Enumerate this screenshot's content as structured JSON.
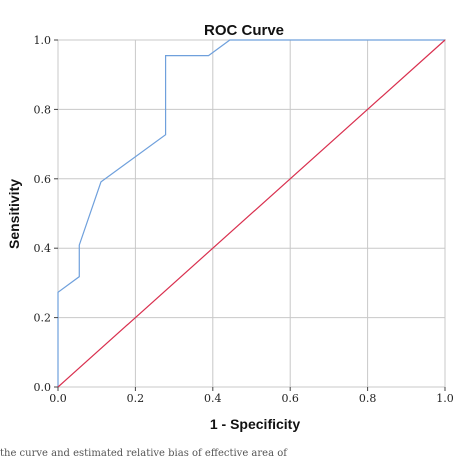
{
  "chart_data": {
    "type": "line",
    "title": "ROC Curve",
    "xlabel": "1 - Specificity",
    "ylabel": "Sensitivity",
    "xlim": [
      0,
      1
    ],
    "ylim": [
      0,
      1
    ],
    "x_ticks": [
      "0.0",
      "0.2",
      "0.4",
      "0.6",
      "0.8",
      "1.0"
    ],
    "y_ticks": [
      "0.0",
      "0.2",
      "0.4",
      "0.6",
      "0.8",
      "1.0"
    ],
    "grid": true,
    "legend": "none",
    "series": [
      {
        "color": "#6fa0dc",
        "points": [
          [
            0.0,
            0.0
          ],
          [
            0.0,
            0.273
          ],
          [
            0.055,
            0.318
          ],
          [
            0.055,
            0.409
          ],
          [
            0.111,
            0.591
          ],
          [
            0.278,
            0.727
          ],
          [
            0.278,
            0.955
          ],
          [
            0.389,
            0.955
          ],
          [
            0.444,
            1.0
          ],
          [
            1.0,
            1.0
          ]
        ]
      },
      {
        "color": "#d9304f",
        "points": [
          [
            0.0,
            0.0
          ],
          [
            1.0,
            1.0
          ]
        ]
      }
    ]
  },
  "footer_text": "the curve and estimated relative bias of effective area of"
}
